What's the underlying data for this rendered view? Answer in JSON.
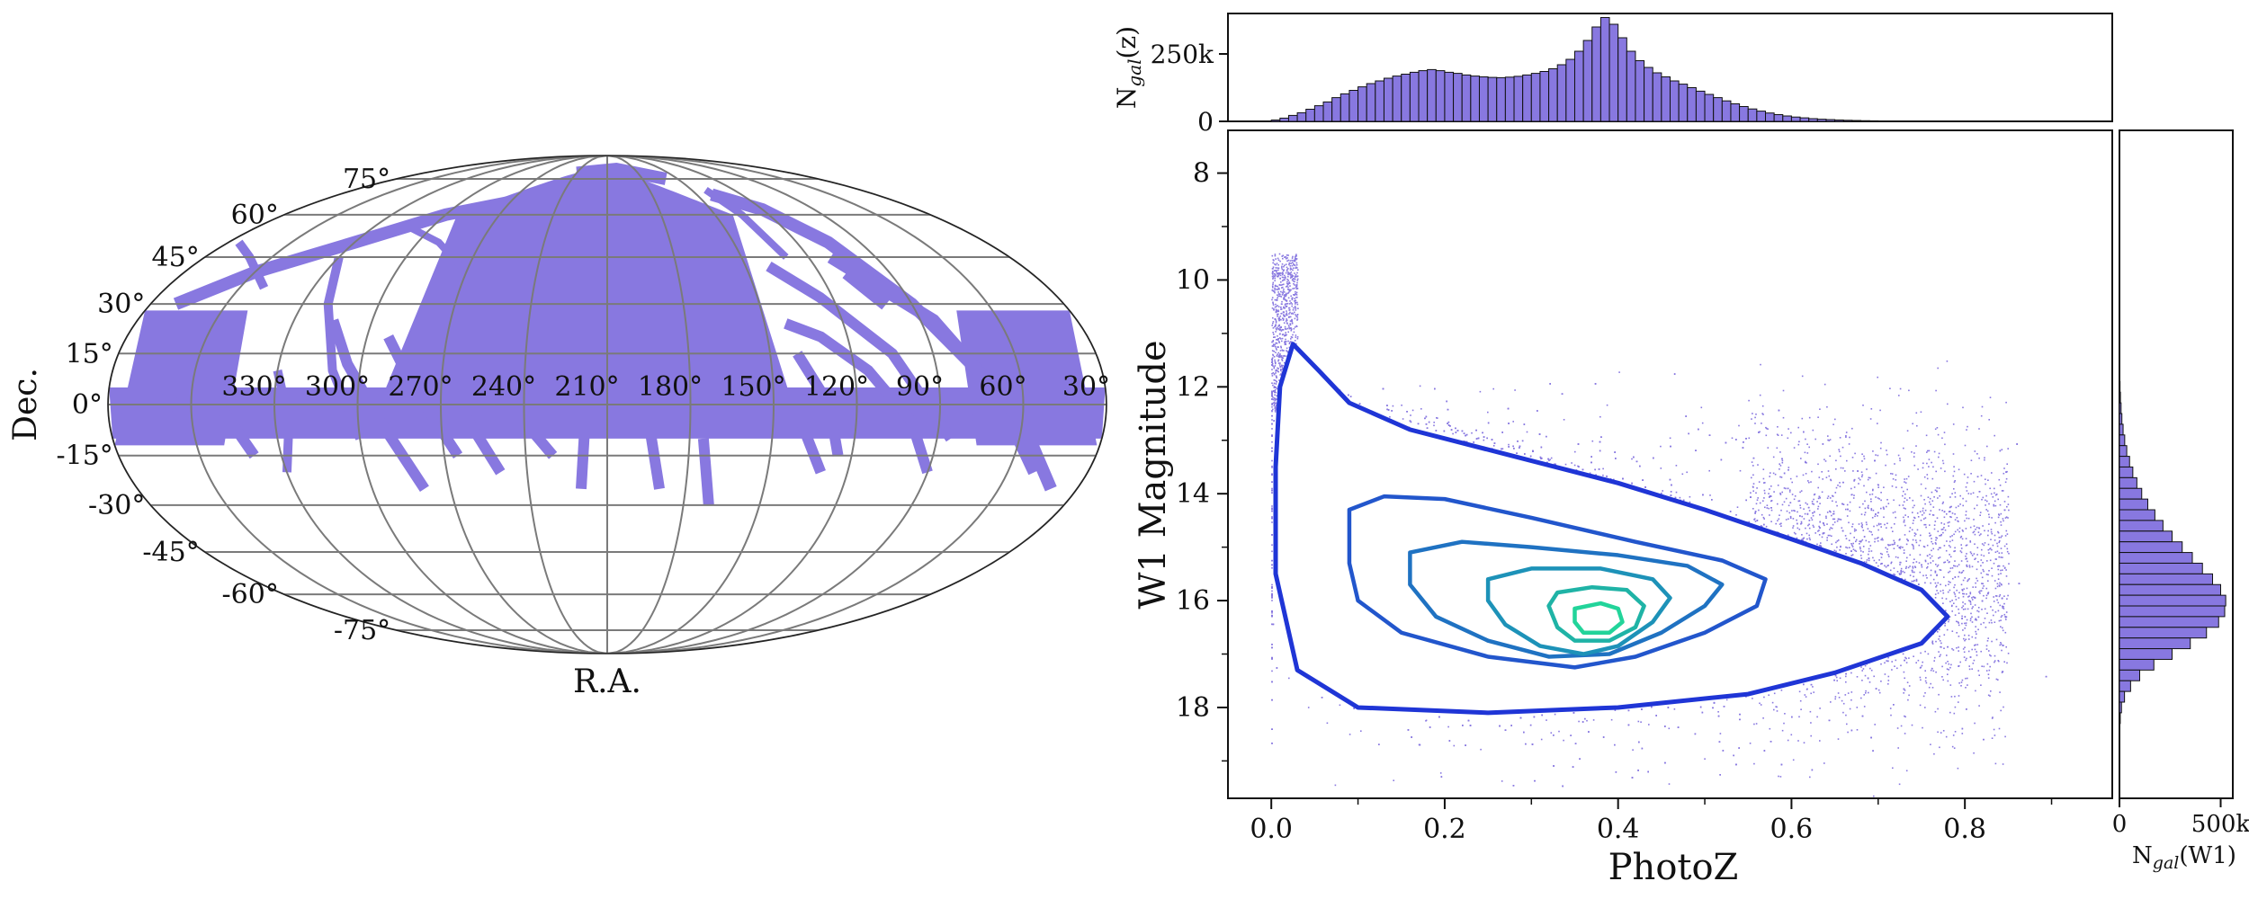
{
  "chart_data": [
    {
      "type": "sky_map",
      "projection": "mollweide",
      "xlabel": "R.A.",
      "ylabel": "Dec.",
      "ra_ticks": [
        "30°",
        "60°",
        "90°",
        "120°",
        "150°",
        "180°",
        "210°",
        "240°",
        "270°",
        "300°",
        "330°"
      ],
      "dec_ticks": [
        "75°",
        "60°",
        "45°",
        "30°",
        "15°",
        "0°",
        "-15°",
        "-30°",
        "-45°",
        "-60°",
        "-75°"
      ],
      "footprint_color": "#8878e0",
      "grid": true
    },
    {
      "type": "scatter",
      "xlabel": "PhotoZ",
      "ylabel": "W1 Magnitude",
      "xlim": [
        -0.05,
        0.97
      ],
      "ylim": [
        19.7,
        7.2
      ],
      "x_ticks": [
        "0.0",
        "0.2",
        "0.4",
        "0.6",
        "0.8"
      ],
      "y_ticks": [
        "8",
        "10",
        "12",
        "14",
        "16",
        "18"
      ],
      "point_color": "#8878e0",
      "contours": [
        {
          "level": 1,
          "color": "#1f35d6",
          "points": [
            [
              0.025,
              11.2
            ],
            [
              0.055,
              11.7
            ],
            [
              0.09,
              12.3
            ],
            [
              0.16,
              12.8
            ],
            [
              0.28,
              13.3
            ],
            [
              0.4,
              13.8
            ],
            [
              0.5,
              14.3
            ],
            [
              0.6,
              14.85
            ],
            [
              0.68,
              15.3
            ],
            [
              0.75,
              15.8
            ],
            [
              0.78,
              16.3
            ],
            [
              0.75,
              16.8
            ],
            [
              0.65,
              17.35
            ],
            [
              0.55,
              17.75
            ],
            [
              0.4,
              18.0
            ],
            [
              0.25,
              18.1
            ],
            [
              0.1,
              18.0
            ],
            [
              0.03,
              17.3
            ],
            [
              0.005,
              15.5
            ],
            [
              0.005,
              13.5
            ],
            [
              0.01,
              12.0
            ]
          ]
        },
        {
          "level": 2,
          "color": "#2256cc",
          "points": [
            [
              0.09,
              14.3
            ],
            [
              0.13,
              14.05
            ],
            [
              0.2,
              14.1
            ],
            [
              0.3,
              14.45
            ],
            [
              0.42,
              14.9
            ],
            [
              0.52,
              15.25
            ],
            [
              0.57,
              15.6
            ],
            [
              0.56,
              16.1
            ],
            [
              0.5,
              16.6
            ],
            [
              0.42,
              17.05
            ],
            [
              0.35,
              17.25
            ],
            [
              0.25,
              17.05
            ],
            [
              0.15,
              16.6
            ],
            [
              0.1,
              16.0
            ],
            [
              0.09,
              15.3
            ]
          ]
        },
        {
          "level": 3,
          "color": "#1f72c2",
          "points": [
            [
              0.16,
              15.1
            ],
            [
              0.22,
              14.9
            ],
            [
              0.3,
              15.0
            ],
            [
              0.4,
              15.15
            ],
            [
              0.48,
              15.35
            ],
            [
              0.52,
              15.7
            ],
            [
              0.5,
              16.1
            ],
            [
              0.45,
              16.6
            ],
            [
              0.39,
              17.0
            ],
            [
              0.32,
              17.05
            ],
            [
              0.25,
              16.75
            ],
            [
              0.19,
              16.3
            ],
            [
              0.16,
              15.7
            ]
          ]
        },
        {
          "level": 4,
          "color": "#1d92b8",
          "points": [
            [
              0.25,
              15.6
            ],
            [
              0.3,
              15.4
            ],
            [
              0.38,
              15.4
            ],
            [
              0.44,
              15.6
            ],
            [
              0.46,
              15.95
            ],
            [
              0.44,
              16.4
            ],
            [
              0.4,
              16.85
            ],
            [
              0.36,
              17.0
            ],
            [
              0.31,
              16.85
            ],
            [
              0.27,
              16.45
            ],
            [
              0.25,
              16.0
            ]
          ]
        },
        {
          "level": 5,
          "color": "#1fb3a6",
          "points": [
            [
              0.33,
              15.85
            ],
            [
              0.37,
              15.75
            ],
            [
              0.41,
              15.8
            ],
            [
              0.43,
              16.1
            ],
            [
              0.42,
              16.5
            ],
            [
              0.39,
              16.75
            ],
            [
              0.35,
              16.75
            ],
            [
              0.33,
              16.5
            ],
            [
              0.32,
              16.1
            ]
          ]
        },
        {
          "level": 6,
          "color": "#22d49a",
          "points": [
            [
              0.35,
              16.15
            ],
            [
              0.38,
              16.05
            ],
            [
              0.4,
              16.15
            ],
            [
              0.405,
              16.4
            ],
            [
              0.39,
              16.6
            ],
            [
              0.36,
              16.6
            ],
            [
              0.35,
              16.4
            ]
          ]
        }
      ]
    },
    {
      "type": "bar",
      "orientation": "vertical",
      "ylabel": "N_gal(z)",
      "ytick_labels": [
        "0",
        "250k"
      ],
      "ytick_values": [
        0,
        250000
      ],
      "ylim": [
        0,
        400000
      ],
      "x_centers": [
        0.005,
        0.015,
        0.025,
        0.035,
        0.045,
        0.055,
        0.065,
        0.075,
        0.085,
        0.095,
        0.105,
        0.115,
        0.125,
        0.135,
        0.145,
        0.155,
        0.165,
        0.175,
        0.185,
        0.195,
        0.205,
        0.215,
        0.225,
        0.235,
        0.245,
        0.255,
        0.265,
        0.275,
        0.285,
        0.295,
        0.305,
        0.315,
        0.325,
        0.335,
        0.345,
        0.355,
        0.365,
        0.375,
        0.385,
        0.395,
        0.405,
        0.415,
        0.425,
        0.435,
        0.445,
        0.455,
        0.465,
        0.475,
        0.485,
        0.495,
        0.505,
        0.515,
        0.525,
        0.535,
        0.545,
        0.555,
        0.565,
        0.575,
        0.585,
        0.595,
        0.605,
        0.615,
        0.625,
        0.635,
        0.645,
        0.655,
        0.665,
        0.675,
        0.685,
        0.695,
        0.705,
        0.715,
        0.725,
        0.735,
        0.745,
        0.755,
        0.765,
        0.775
      ],
      "values": [
        5000,
        12000,
        22000,
        32000,
        45000,
        58000,
        72000,
        88000,
        102000,
        115000,
        128000,
        140000,
        150000,
        160000,
        168000,
        175000,
        182000,
        188000,
        192000,
        188000,
        182000,
        178000,
        172000,
        168000,
        165000,
        163000,
        162000,
        164000,
        167000,
        172000,
        178000,
        185000,
        195000,
        210000,
        230000,
        260000,
        300000,
        350000,
        385000,
        360000,
        310000,
        260000,
        225000,
        200000,
        180000,
        165000,
        150000,
        138000,
        125000,
        112000,
        100000,
        88000,
        76000,
        65000,
        55000,
        46000,
        38000,
        31000,
        25000,
        20000,
        16000,
        13000,
        10000,
        8000,
        6500,
        5000,
        4000,
        3200,
        2500,
        2000,
        1600,
        1200,
        1000,
        800,
        600,
        400,
        300,
        200
      ],
      "bar_color": "#8878e0"
    },
    {
      "type": "bar",
      "orientation": "horizontal",
      "xlabel": "N_gal(W1)",
      "xtick_labels": [
        "0",
        "500k"
      ],
      "xtick_values": [
        0,
        500000
      ],
      "xlim": [
        0,
        560000
      ],
      "y_centers": [
        12.0,
        12.2,
        12.4,
        12.6,
        12.8,
        13.0,
        13.2,
        13.4,
        13.6,
        13.8,
        14.0,
        14.2,
        14.4,
        14.6,
        14.8,
        15.0,
        15.2,
        15.4,
        15.6,
        15.8,
        16.0,
        16.2,
        16.4,
        16.6,
        16.8,
        17.0,
        17.2,
        17.4,
        17.6,
        17.8,
        18.0,
        18.2
      ],
      "values": [
        3000,
        5000,
        8000,
        12000,
        18000,
        26000,
        36000,
        50000,
        66000,
        86000,
        110000,
        140000,
        175000,
        215000,
        260000,
        310000,
        360000,
        410000,
        460000,
        500000,
        525000,
        520000,
        490000,
        430000,
        350000,
        260000,
        170000,
        100000,
        55000,
        25000,
        10000,
        4000
      ],
      "bar_color": "#8878e0"
    }
  ]
}
